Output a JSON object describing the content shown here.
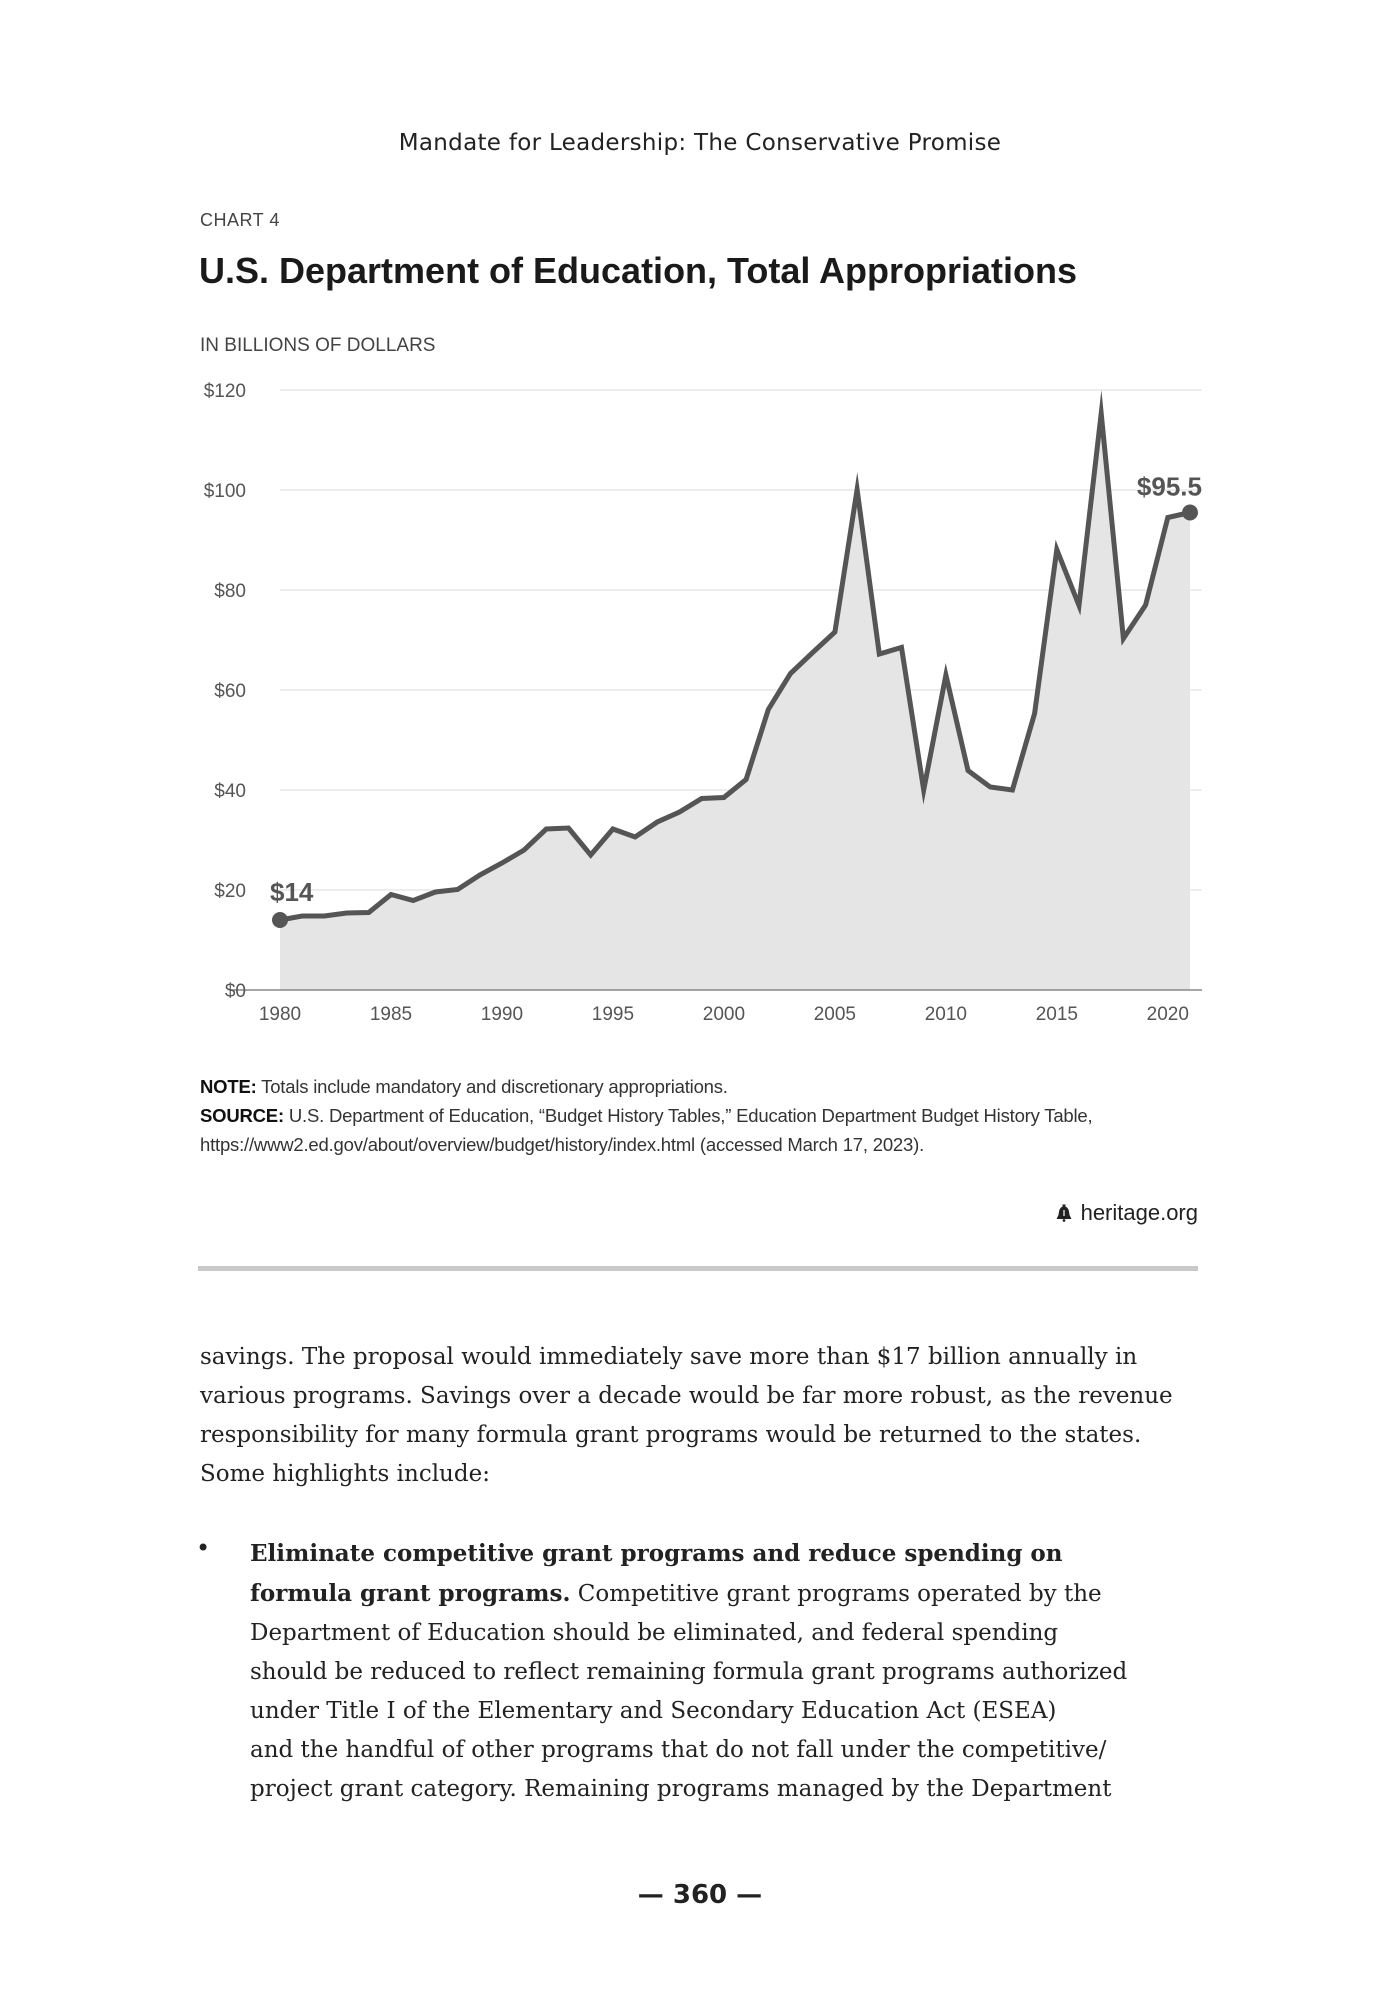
{
  "running_head": "Mandate for Leadership: The Conservative Promise",
  "chart_number": "CHART 4",
  "chart_units": "IN BILLIONS OF DOLLARS",
  "chart_data": {
    "type": "area",
    "title": "U.S. Department of Education, Total Appropriations",
    "ylabel": "",
    "xlabel": "",
    "ylim": [
      0,
      120
    ],
    "xlim": [
      1980,
      2021
    ],
    "y_ticks": [
      0,
      20,
      40,
      60,
      80,
      100,
      120
    ],
    "y_tick_labels": [
      "$0",
      "$20",
      "$40",
      "$60",
      "$80",
      "$100",
      "$120"
    ],
    "x_ticks": [
      1980,
      1985,
      1990,
      1995,
      2000,
      2005,
      2010,
      2015,
      2020
    ],
    "x_tick_labels": [
      "1980",
      "1985",
      "1990",
      "1995",
      "2000",
      "2005",
      "2010",
      "2015",
      "2020"
    ],
    "grid": "horizontal",
    "colors": {
      "line": "#555555",
      "fill": "#e4e5e4",
      "grid": "#e2e2e2",
      "axis": "#888888"
    },
    "x": [
      1980,
      1981,
      1982,
      1983,
      1984,
      1985,
      1986,
      1987,
      1988,
      1989,
      1990,
      1991,
      1992,
      1993,
      1994,
      1995,
      1996,
      1997,
      1998,
      1999,
      2000,
      2001,
      2002,
      2003,
      2004,
      2005,
      2006,
      2007,
      2008,
      2009,
      2010,
      2011,
      2012,
      2013,
      2014,
      2015,
      2016,
      2017,
      2018,
      2019,
      2020,
      2021
    ],
    "values": [
      14.0,
      14.8,
      14.8,
      15.4,
      15.5,
      19.1,
      17.9,
      19.6,
      20.1,
      23.0,
      25.4,
      28.0,
      32.2,
      32.4,
      27.0,
      32.2,
      30.6,
      33.6,
      35.6,
      38.3,
      38.5,
      42.1,
      56.1,
      63.3,
      67.5,
      71.6,
      100.1,
      67.2,
      68.5,
      40.0,
      63.0,
      43.9,
      40.6,
      40.0,
      55.3,
      88.1,
      76.9,
      115.3,
      70.3,
      77.0,
      94.5,
      95.5
    ],
    "annotations": [
      {
        "year": 1980,
        "value": 14.0,
        "label": "$14"
      },
      {
        "year": 2021,
        "value": 95.5,
        "label": "$95.5"
      }
    ]
  },
  "note": {
    "label": "NOTE:",
    "text": " Totals include mandatory and discretionary appropriations."
  },
  "source": {
    "label": "SOURCE:",
    "line1": " U.S. Department of Education, “Budget History Tables,” Education Department Budget History Table,",
    "line2": "https://www2.ed.gov/about/overview/budget/history/index.html (accessed March 17, 2023)."
  },
  "brand": {
    "icon": "liberty-bell-icon",
    "text": "heritage.org"
  },
  "body_paragraph": [
    "savings. The proposal would immediately save more than $17 billion annually in",
    "various programs. Savings over a decade would be far more robust, as the revenue",
    "responsibility for many formula grant programs would be returned to the states.",
    "Some highlights include:"
  ],
  "bullet": {
    "marker": "•",
    "bold_line1": "Eliminate competitive grant programs and reduce spending on",
    "bold_line2": "formula grant programs.",
    "line2_rest": " Competitive grant programs operated by the",
    "lines": [
      "Department of Education should be eliminated, and federal spending",
      "should be reduced to reflect remaining formula grant programs authorized",
      "under Title I of the Elementary and Secondary Education Act (ESEA)",
      "and the handful of other programs that do not fall under the competitive/",
      "project grant category. Remaining programs managed by the Department"
    ]
  },
  "page_number": "— 360 —"
}
